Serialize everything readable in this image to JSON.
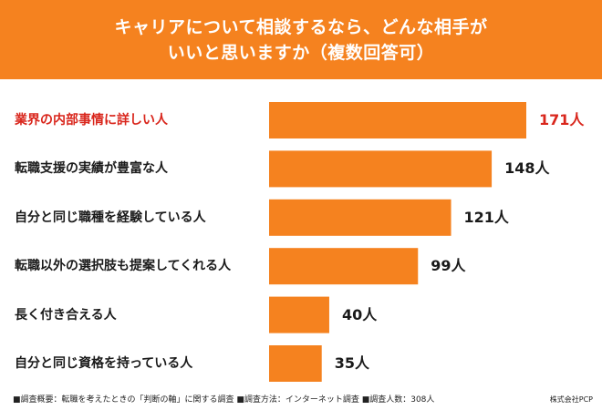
{
  "header": {
    "title": "キャリアについて相談するなら、どんな相手が\nいいと思いますか（複数回答可）"
  },
  "colors": {
    "accent": "#f5821f",
    "highlight_text": "#d9261c",
    "text": "#1a1a1a"
  },
  "chart_data": {
    "type": "bar",
    "orientation": "horizontal",
    "categories": [
      "業界の内部事情に詳しい人",
      "転職支援の実績が豊富な人",
      "自分と同じ職種を経験している人",
      "転職以外の選択肢も提案してくれる人",
      "長く付き合える人",
      "自分と同じ資格を持っている人"
    ],
    "values": [
      171,
      148,
      121,
      99,
      40,
      35
    ],
    "value_labels": [
      "171人",
      "148人",
      "121人",
      "99人",
      "40人",
      "35人"
    ],
    "highlight_index": 0,
    "xlim": [
      0,
      171
    ],
    "grid": false,
    "legend": "none"
  },
  "footer": {
    "note": "■調査概要：転職を考えたときの「判断の軸」に関する調査 ■調査方法：インターネット調査 ■調査人数：308人",
    "brand": "株式会社PCP"
  }
}
